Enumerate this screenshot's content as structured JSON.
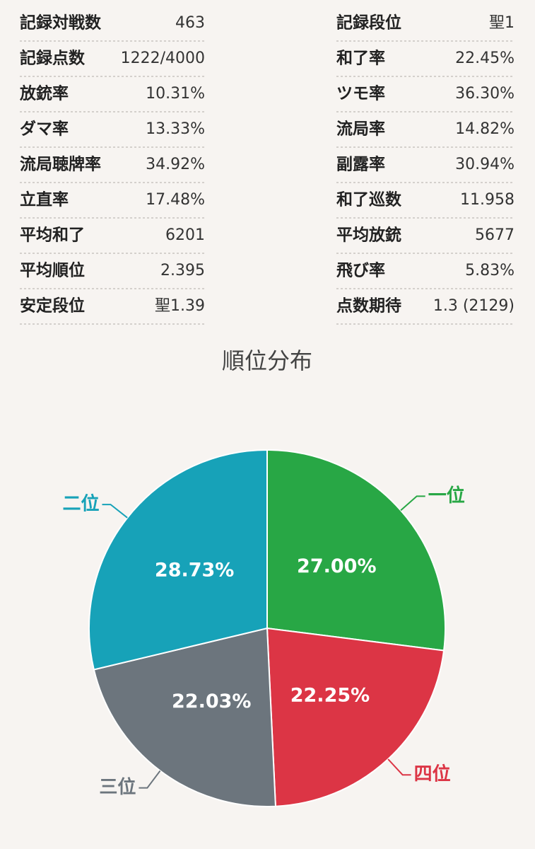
{
  "stats": {
    "left": [
      {
        "label": "記録対戦数",
        "value": "463"
      },
      {
        "label": "記録点数",
        "value": "1222/4000"
      },
      {
        "label": "放銃率",
        "value": "10.31%"
      },
      {
        "label": "ダマ率",
        "value": "13.33%"
      },
      {
        "label": "流局聴牌率",
        "value": "34.92%"
      },
      {
        "label": "立直率",
        "value": "17.48%"
      },
      {
        "label": "平均和了",
        "value": "6201"
      },
      {
        "label": "平均順位",
        "value": "2.395"
      },
      {
        "label": "安定段位",
        "value": "聖1.39"
      }
    ],
    "right": [
      {
        "label": "記録段位",
        "value": "聖1"
      },
      {
        "label": "和了率",
        "value": "22.45%"
      },
      {
        "label": "ツモ率",
        "value": "36.30%"
      },
      {
        "label": "流局率",
        "value": "14.82%"
      },
      {
        "label": "副露率",
        "value": "30.94%"
      },
      {
        "label": "和了巡数",
        "value": "11.958"
      },
      {
        "label": "平均放銃",
        "value": "5677"
      },
      {
        "label": "飛び率",
        "value": "5.83%"
      },
      {
        "label": "点数期待",
        "value": "1.3 (2129)"
      }
    ]
  },
  "chart_data": {
    "type": "pie",
    "title": "順位分布",
    "categories": [
      "一位",
      "四位",
      "三位",
      "二位"
    ],
    "values": [
      27.0,
      22.25,
      22.03,
      28.73
    ],
    "value_labels": [
      "27.00%",
      "22.25%",
      "22.03%",
      "28.73%"
    ],
    "colors": [
      "#28a745",
      "#dc3545",
      "#6c757d",
      "#17a2b8"
    ]
  }
}
